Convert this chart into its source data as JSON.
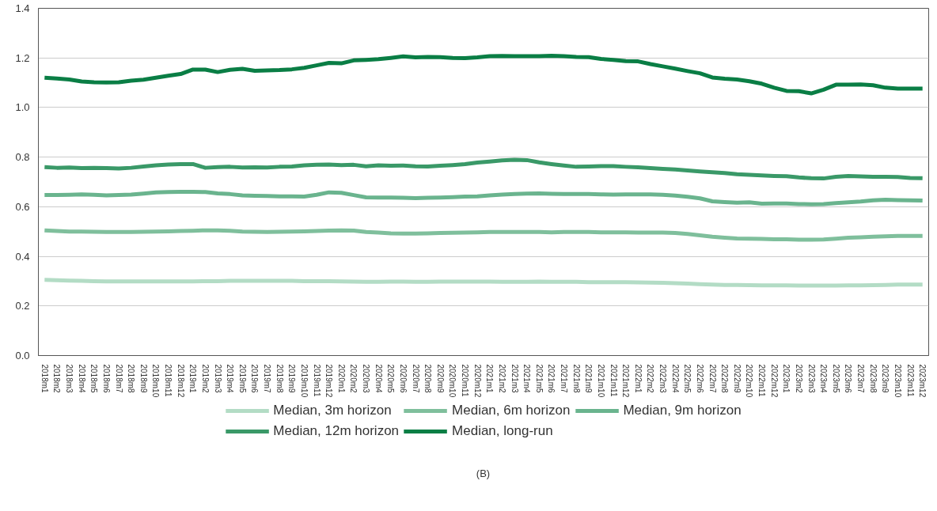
{
  "chart_data": {
    "type": "line",
    "categories": [
      "2018m1",
      "2018m2",
      "2018m3",
      "2018m4",
      "2018m5",
      "2018m6",
      "2018m7",
      "2018m8",
      "2018m9",
      "2018m10",
      "2018m11",
      "2018m12",
      "2019m1",
      "2019m2",
      "2019m3",
      "2019m4",
      "2019m5",
      "2019m6",
      "2019m7",
      "2019m8",
      "2019m9",
      "2019m10",
      "2019m11",
      "2019m12",
      "2020m1",
      "2020m2",
      "2020m3",
      "2020m4",
      "2020m5",
      "2020m6",
      "2020m7",
      "2020m8",
      "2020m9",
      "2020m10",
      "2020m11",
      "2020m12",
      "2021m1",
      "2021m2",
      "2021m3",
      "2021m4",
      "2021m5",
      "2021m6",
      "2021m7",
      "2021m8",
      "2021m9",
      "2021m10",
      "2021m11",
      "2021m12",
      "2022m1",
      "2022m2",
      "2022m3",
      "2022m4",
      "2022m5",
      "2022m6",
      "2022m7",
      "2022m8",
      "2022m9",
      "2022m10",
      "2022m11",
      "2022m12",
      "2023m1",
      "2023m2",
      "2023m3",
      "2023m4",
      "2023m5",
      "2023m6",
      "2023m7",
      "2023m8",
      "2023m9",
      "2023m10",
      "2023m11",
      "2023m12"
    ],
    "series": [
      {
        "name": "Median, 3m horizon",
        "color": "#b3dcc5",
        "values": [
          0.305,
          0.304,
          0.302,
          0.301,
          0.3,
          0.299,
          0.299,
          0.299,
          0.299,
          0.299,
          0.299,
          0.299,
          0.299,
          0.3,
          0.3,
          0.301,
          0.301,
          0.301,
          0.301,
          0.301,
          0.301,
          0.3,
          0.3,
          0.3,
          0.299,
          0.298,
          0.297,
          0.297,
          0.298,
          0.298,
          0.297,
          0.297,
          0.298,
          0.298,
          0.298,
          0.298,
          0.298,
          0.297,
          0.297,
          0.297,
          0.298,
          0.297,
          0.297,
          0.297,
          0.296,
          0.296,
          0.296,
          0.296,
          0.295,
          0.294,
          0.293,
          0.292,
          0.29,
          0.288,
          0.286,
          0.285,
          0.285,
          0.284,
          0.283,
          0.283,
          0.283,
          0.282,
          0.282,
          0.282,
          0.282,
          0.283,
          0.283,
          0.284,
          0.285,
          0.286,
          0.286,
          0.286
        ]
      },
      {
        "name": "Median, 6m horizon",
        "color": "#7fbf9c",
        "values": [
          0.505,
          0.502,
          0.5,
          0.5,
          0.499,
          0.498,
          0.498,
          0.498,
          0.499,
          0.5,
          0.501,
          0.502,
          0.503,
          0.505,
          0.505,
          0.503,
          0.5,
          0.499,
          0.498,
          0.499,
          0.5,
          0.501,
          0.502,
          0.504,
          0.505,
          0.504,
          0.498,
          0.496,
          0.493,
          0.492,
          0.492,
          0.493,
          0.494,
          0.495,
          0.496,
          0.497,
          0.498,
          0.498,
          0.498,
          0.498,
          0.498,
          0.497,
          0.498,
          0.498,
          0.498,
          0.497,
          0.497,
          0.497,
          0.496,
          0.496,
          0.496,
          0.494,
          0.49,
          0.485,
          0.479,
          0.475,
          0.472,
          0.471,
          0.47,
          0.469,
          0.469,
          0.467,
          0.467,
          0.468,
          0.471,
          0.475,
          0.477,
          0.479,
          0.481,
          0.482,
          0.482,
          0.482
        ]
      },
      {
        "name": "Median, 9m horizon",
        "color": "#6ab48e",
        "values": [
          0.647,
          0.647,
          0.648,
          0.65,
          0.648,
          0.646,
          0.647,
          0.649,
          0.653,
          0.658,
          0.659,
          0.66,
          0.66,
          0.659,
          0.654,
          0.651,
          0.646,
          0.644,
          0.643,
          0.642,
          0.642,
          0.641,
          0.648,
          0.658,
          0.656,
          0.647,
          0.638,
          0.637,
          0.637,
          0.636,
          0.635,
          0.636,
          0.637,
          0.639,
          0.641,
          0.642,
          0.646,
          0.649,
          0.651,
          0.653,
          0.654,
          0.652,
          0.651,
          0.651,
          0.651,
          0.65,
          0.649,
          0.65,
          0.65,
          0.65,
          0.648,
          0.645,
          0.64,
          0.634,
          0.622,
          0.619,
          0.616,
          0.618,
          0.612,
          0.613,
          0.613,
          0.611,
          0.61,
          0.611,
          0.615,
          0.618,
          0.621,
          0.626,
          0.628,
          0.627,
          0.626,
          0.625
        ]
      },
      {
        "name": "Median, 12m horizon",
        "color": "#3a9968",
        "values": [
          0.76,
          0.757,
          0.758,
          0.756,
          0.757,
          0.756,
          0.754,
          0.757,
          0.762,
          0.767,
          0.77,
          0.772,
          0.772,
          0.757,
          0.76,
          0.761,
          0.758,
          0.759,
          0.758,
          0.761,
          0.762,
          0.767,
          0.769,
          0.77,
          0.768,
          0.769,
          0.763,
          0.767,
          0.765,
          0.766,
          0.763,
          0.762,
          0.765,
          0.768,
          0.772,
          0.778,
          0.782,
          0.787,
          0.789,
          0.788,
          0.779,
          0.772,
          0.766,
          0.761,
          0.762,
          0.764,
          0.764,
          0.761,
          0.759,
          0.756,
          0.753,
          0.75,
          0.746,
          0.742,
          0.739,
          0.736,
          0.731,
          0.729,
          0.726,
          0.724,
          0.723,
          0.718,
          0.715,
          0.714,
          0.721,
          0.724,
          0.722,
          0.721,
          0.721,
          0.72,
          0.716,
          0.715
        ]
      },
      {
        "name": "Median, long-run",
        "color": "#0a7e45",
        "values": [
          1.12,
          1.117,
          1.113,
          1.105,
          1.102,
          1.101,
          1.102,
          1.108,
          1.112,
          1.12,
          1.128,
          1.135,
          1.153,
          1.153,
          1.143,
          1.152,
          1.156,
          1.148,
          1.15,
          1.151,
          1.154,
          1.16,
          1.17,
          1.18,
          1.178,
          1.19,
          1.192,
          1.195,
          1.2,
          1.206,
          1.202,
          1.204,
          1.203,
          1.2,
          1.199,
          1.202,
          1.207,
          1.208,
          1.207,
          1.207,
          1.207,
          1.209,
          1.207,
          1.204,
          1.203,
          1.196,
          1.192,
          1.187,
          1.186,
          1.175,
          1.166,
          1.157,
          1.147,
          1.138,
          1.121,
          1.116,
          1.113,
          1.106,
          1.096,
          1.08,
          1.067,
          1.066,
          1.057,
          1.072,
          1.092,
          1.092,
          1.093,
          1.09,
          1.08,
          1.076,
          1.076,
          1.076
        ]
      }
    ],
    "ylim": [
      0,
      1.4
    ],
    "yticks": [
      {
        "value": 0,
        "label": "0.0"
      },
      0.2,
      0.4,
      0.6,
      0.8,
      {
        "value": 1,
        "label": "1.0"
      },
      1.2,
      1.4
    ],
    "grid": "y",
    "legend": "bottom",
    "marker": "none",
    "line_style": "solid",
    "annotations": [
      "(B)"
    ]
  }
}
